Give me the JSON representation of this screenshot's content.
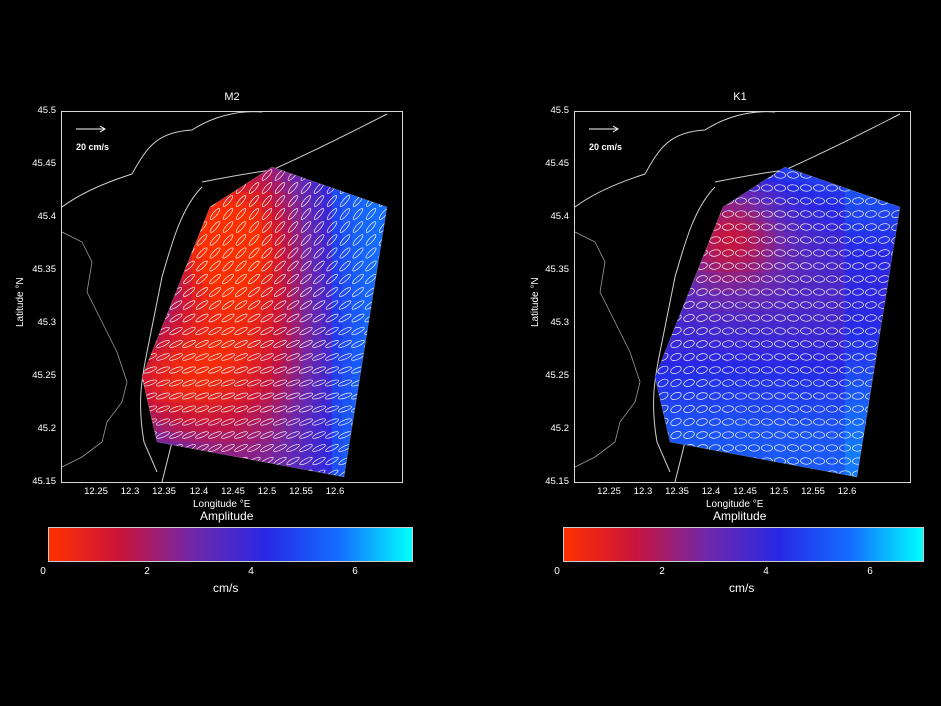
{
  "maps": [
    {
      "title": "M2",
      "ylabel": "Latitude °N",
      "xlabel": "Longitude °E",
      "scale_label": "20 cm/s",
      "colorbar_title": "Amplitude",
      "colorbar_unit": "cm/s",
      "colorbar_ticks": [
        "0",
        "2",
        "4",
        "6"
      ],
      "yticks": [
        "45.5",
        "45.45",
        "45.4",
        "45.35",
        "45.3",
        "45.25",
        "45.2",
        "45.15"
      ],
      "xticks": [
        "12.25",
        "12.3",
        "12.35",
        "12.4",
        "12.45",
        "12.5",
        "12.55",
        "12.6"
      ],
      "amplitude_range": [
        0,
        7
      ],
      "hot_zones": [
        "west-north",
        "west-south"
      ]
    },
    {
      "title": "K1",
      "ylabel": "Latitude °N",
      "xlabel": "Longitude °E",
      "scale_label": "20 cm/s",
      "colorbar_title": "Amplitude",
      "colorbar_unit": "cm/s",
      "colorbar_ticks": [
        "0",
        "2",
        "4",
        "6"
      ],
      "yticks": [
        "45.5",
        "45.45",
        "45.4",
        "45.35",
        "45.3",
        "45.25",
        "45.2",
        "45.15"
      ],
      "xticks": [
        "12.25",
        "12.3",
        "12.35",
        "12.4",
        "12.45",
        "12.5",
        "12.55",
        "12.6"
      ],
      "amplitude_range": [
        0,
        7
      ],
      "hot_zones": [
        "west-north"
      ]
    }
  ],
  "colors": {
    "background": "#000000",
    "low": "#ff3000",
    "mid": "#6a2ab0",
    "high": "#00ffff"
  }
}
